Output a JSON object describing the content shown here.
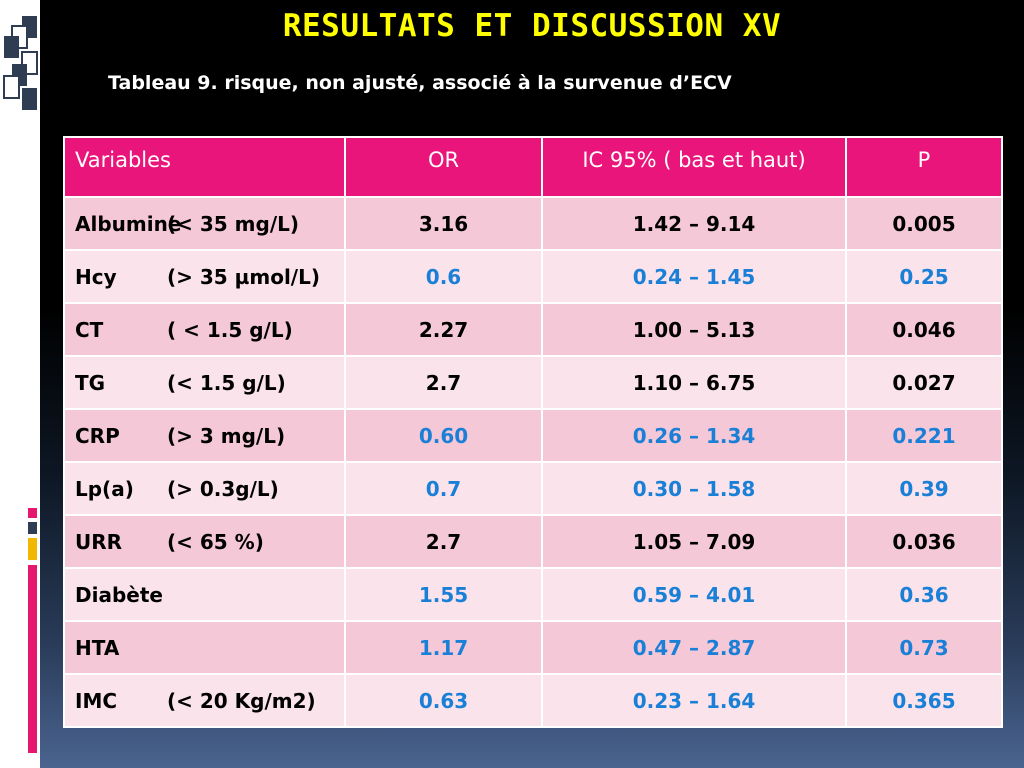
{
  "slide": {
    "title": "RESULTATS ET DISCUSSION XV",
    "subtitle": "Tableau 9. risque, non ajusté, associé à la survenue d’ECV"
  },
  "table": {
    "headers": {
      "variables": "Variables",
      "or": "OR",
      "ic": "IC 95% ( bas et haut)",
      "p": "P"
    },
    "rows": [
      {
        "name": "Albumine",
        "criterion": "(< 35 mg/L)",
        "or": "3.16",
        "ic": "1.42 – 9.14",
        "p": "0.005",
        "significant": true
      },
      {
        "name": "Hcy",
        "criterion": "(> 35 µmol/L)",
        "or": "0.6",
        "ic": "0.24 – 1.45",
        "p": "0.25",
        "significant": false
      },
      {
        "name": "CT",
        "criterion": "( < 1.5 g/L)",
        "or": "2.27",
        "ic": "1.00 – 5.13",
        "p": "0.046",
        "significant": true
      },
      {
        "name": "TG",
        "criterion": "(< 1.5 g/L)",
        "or": "2.7",
        "ic": "1.10 – 6.75",
        "p": "0.027",
        "significant": true
      },
      {
        "name": "CRP",
        "criterion": "(> 3 mg/L)",
        "or": "0.60",
        "ic": "0.26 – 1.34",
        "p": "0.221",
        "significant": false
      },
      {
        "name": "Lp(a)",
        "criterion": "(> 0.3g/L)",
        "or": "0.7",
        "ic": "0.30 – 1.58",
        "p": "0.39",
        "significant": false
      },
      {
        "name": "URR",
        "criterion": "(< 65 %)",
        "or": "2.7",
        "ic": "1.05 – 7.09",
        "p": "0.036",
        "significant": true
      },
      {
        "name": "Diabète",
        "criterion": "",
        "or": "1.55",
        "ic": "0.59 – 4.01",
        "p": "0.36",
        "significant": false
      },
      {
        "name": "HTA",
        "criterion": "",
        "or": "1.17",
        "ic": "0.47 – 2.87",
        "p": "0.73",
        "significant": false
      },
      {
        "name": "IMC",
        "criterion": "(< 20 Kg/m2)",
        "or": "0.63",
        "ic": "0.23 – 1.64",
        "p": "0.365",
        "significant": false
      }
    ]
  },
  "colors": {
    "title": "#ffff00",
    "header_bg": "#e9157a",
    "row_dark": "#f5c8d7",
    "row_light": "#fae3eb",
    "non_significant_text": "#1a7fd6",
    "significant_text": "#000000"
  },
  "icons": {
    "corner": "document-stack-icon"
  }
}
